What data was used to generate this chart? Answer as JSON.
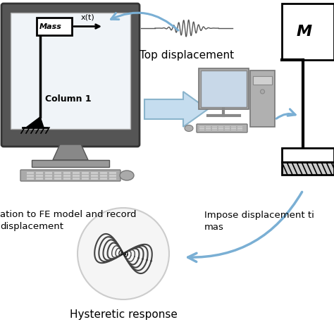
{
  "bg_color": "#ffffff",
  "arrow_blue": "#7aafd4",
  "arrow_blue_edge": "#5a8fba",
  "seismic_color": "#555555",
  "monitor_border": "#333333",
  "monitor_body": "#666666",
  "monitor_screen_bg": "#e8f0f8",
  "monitor_stand": "#888888",
  "monitor_base": "#aaaaaa",
  "kb_color": "#999999",
  "pc_color": "#aaaaaa",
  "pc_screen": "#d0dde8",
  "hatch_color": "#444444",
  "mass_label": "Mass",
  "column_label": "Column 1",
  "M_label": "M",
  "top_displacement": "Top displacement",
  "fe_label_line1": "ation to FE model and record",
  "fe_label_line2": "displacement",
  "impose_line1": "Impose displacement ti",
  "impose_line2": "mas",
  "hysteretic": "Hysteretic response",
  "xt_label": "x(t)"
}
